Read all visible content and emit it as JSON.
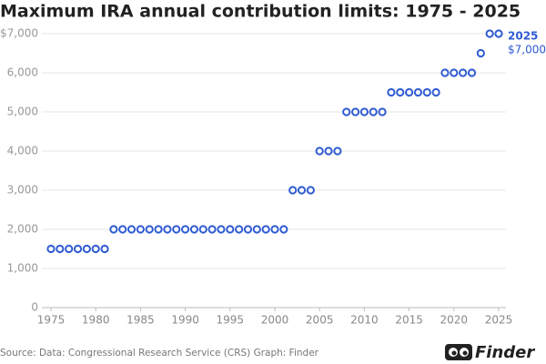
{
  "chart_data": {
    "type": "scatter",
    "title": "Maximum IRA annual contribution limits: 1975 - 2025",
    "x": [
      1975,
      1976,
      1977,
      1978,
      1979,
      1980,
      1981,
      1982,
      1983,
      1984,
      1985,
      1986,
      1987,
      1988,
      1989,
      1990,
      1991,
      1992,
      1993,
      1994,
      1995,
      1996,
      1997,
      1998,
      1999,
      2000,
      2001,
      2002,
      2003,
      2004,
      2005,
      2006,
      2007,
      2008,
      2009,
      2010,
      2011,
      2012,
      2013,
      2014,
      2015,
      2016,
      2017,
      2018,
      2019,
      2020,
      2021,
      2022,
      2023,
      2024,
      2025
    ],
    "values": [
      1500,
      1500,
      1500,
      1500,
      1500,
      1500,
      1500,
      2000,
      2000,
      2000,
      2000,
      2000,
      2000,
      2000,
      2000,
      2000,
      2000,
      2000,
      2000,
      2000,
      2000,
      2000,
      2000,
      2000,
      2000,
      2000,
      2000,
      3000,
      3000,
      3000,
      4000,
      4000,
      4000,
      5000,
      5000,
      5000,
      5000,
      5000,
      5500,
      5500,
      5500,
      5500,
      5500,
      5500,
      6000,
      6000,
      6000,
      6000,
      6500,
      7000,
      7000
    ],
    "color": "#2f5bd3",
    "xlim": [
      1975,
      2025
    ],
    "xticks": [
      1975,
      1980,
      1985,
      1990,
      1995,
      2000,
      2005,
      2010,
      2015,
      2020,
      2025
    ],
    "ylim": [
      0,
      7000
    ],
    "yticks": [
      0,
      {
        "value": 1000,
        "label": "1,000"
      },
      {
        "value": 2000,
        "label": "2,000"
      },
      {
        "value": 3000,
        "label": "3,000"
      },
      {
        "value": 4000,
        "label": "4,000"
      },
      {
        "value": 5000,
        "label": "5,000"
      },
      {
        "value": 6000,
        "label": "6,000"
      },
      {
        "value": 7000,
        "label": "$7,000"
      }
    ],
    "grid": true,
    "annotation": {
      "title": "2025",
      "label": "$7,000",
      "x": 2025,
      "y": 7000
    },
    "source": "Source: Data: Congressional Research Service (CRS) Graph: Finder",
    "logo": "Finder"
  }
}
